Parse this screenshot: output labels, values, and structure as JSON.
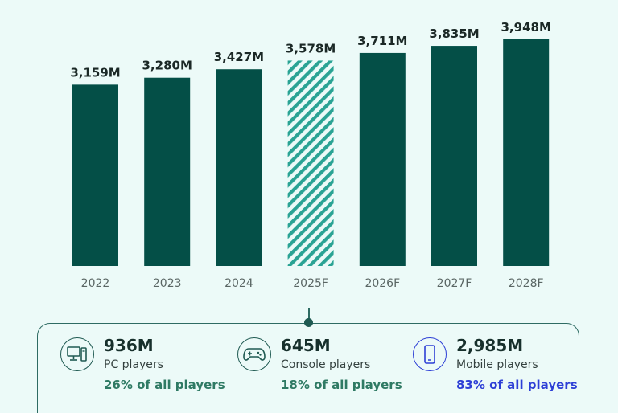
{
  "chart_data": {
    "type": "bar",
    "categories": [
      "2022",
      "2023",
      "2024",
      "2025F",
      "2026F",
      "2027F",
      "2028F"
    ],
    "values": [
      3159,
      3280,
      3427,
      3578,
      3711,
      3835,
      3948
    ],
    "value_labels": [
      "3,159M",
      "3,280M",
      "3,427M",
      "3,578M",
      "3,711M",
      "3,835M",
      "3,948M"
    ],
    "highlight_index": 3,
    "highlight_style": "hatched",
    "ylim": [
      0,
      3948
    ],
    "grid": false,
    "colors": {
      "bar": "#044f47",
      "hatch": "#2aa394",
      "label": "#1b2826",
      "tick": "#5a6664"
    }
  },
  "breakdown": {
    "pc": {
      "icon": "desktop-computer-icon",
      "value": "936M",
      "label": "PC players",
      "share": "26% of all players"
    },
    "console": {
      "icon": "gamepad-icon",
      "value": "645M",
      "label": "Console players",
      "share": "18% of all players"
    },
    "mobile": {
      "icon": "smartphone-icon",
      "value": "2,985M",
      "label": "Mobile players",
      "share": "83% of all players"
    }
  },
  "colors": {
    "background": "#ecfaf8",
    "accent": "#1f5a52",
    "mobile_accent": "#2d3fd6"
  }
}
